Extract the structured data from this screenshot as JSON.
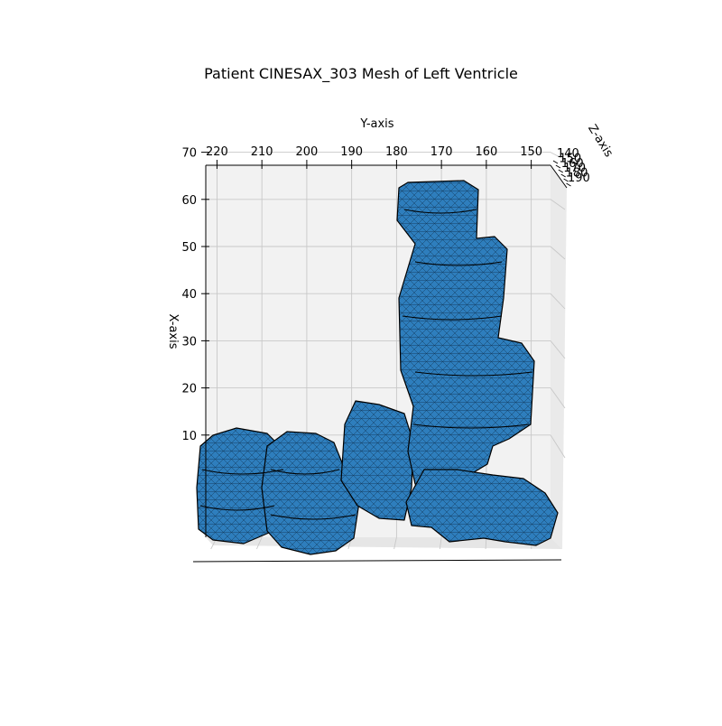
{
  "chart_data": {
    "type": "3d-mesh",
    "title": "Patient CINESAX_303 Mesh of Left Ventricle",
    "mesh_color": "#2e7ebd",
    "edge_color": "#000000",
    "pane_color": "#f2f2f2",
    "grid": true,
    "axes": {
      "y": {
        "label": "Y-axis",
        "ticks": [
          220,
          210,
          200,
          190,
          180,
          170,
          160,
          150
        ],
        "range": [
          147,
          226
        ]
      },
      "x": {
        "label": "X-axis",
        "ticks": [
          10,
          20,
          30,
          40,
          50,
          60,
          70
        ],
        "range": [
          -8,
          75
        ]
      },
      "z": {
        "label": "Z-axis",
        "ticks": [
          140,
          150,
          160,
          170,
          180,
          190
        ]
      }
    }
  }
}
